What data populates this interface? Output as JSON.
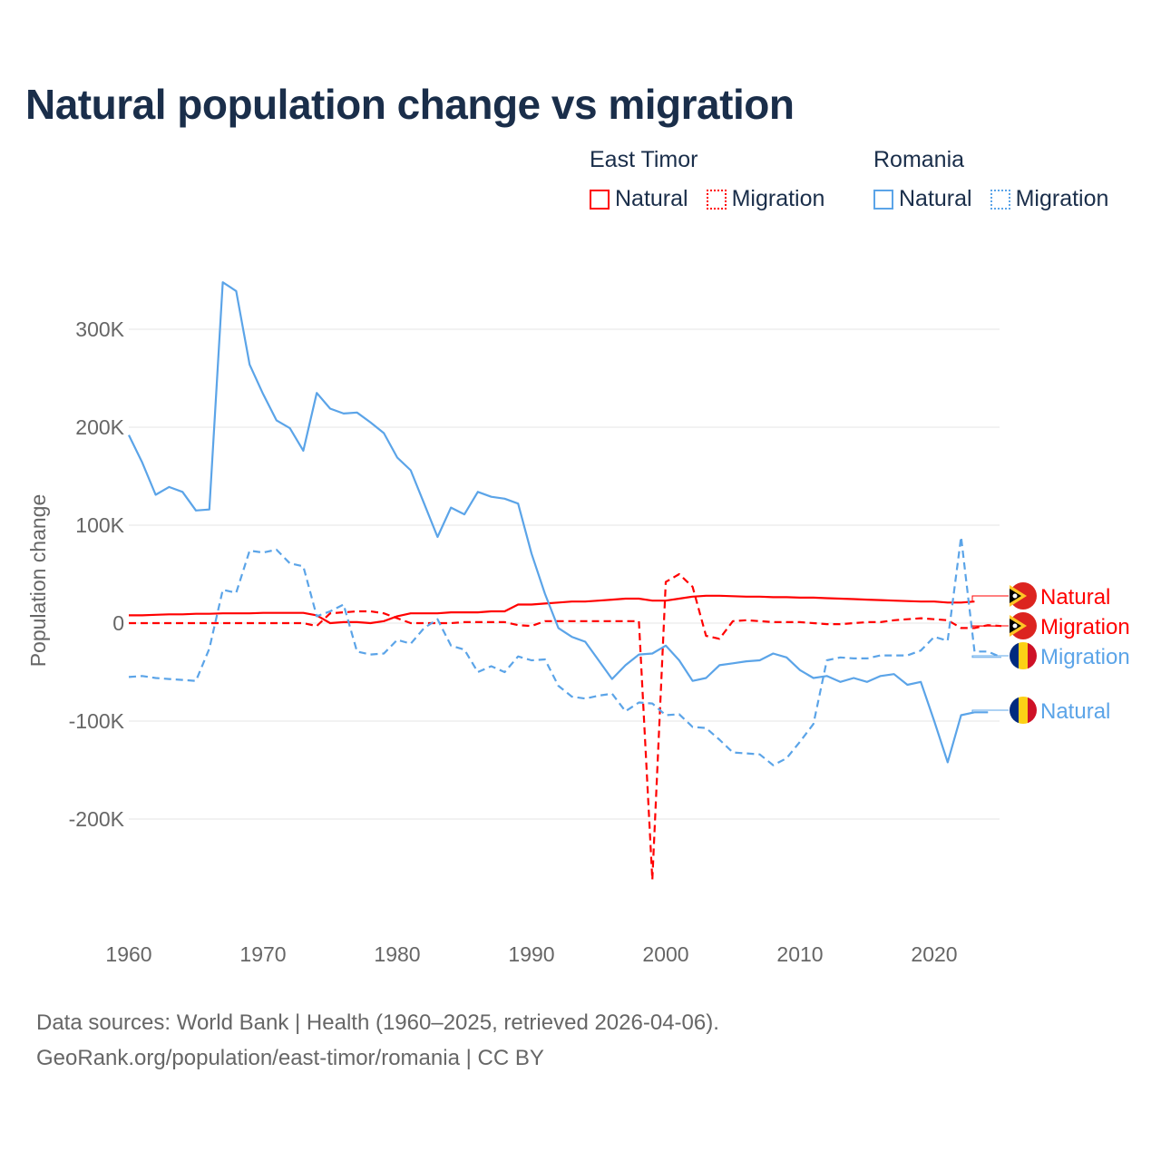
{
  "title": "Natural population change vs migration",
  "legend": {
    "groups": [
      {
        "name": "East Timor",
        "color": "#ff0000",
        "items": [
          "Natural",
          "Migration"
        ]
      },
      {
        "name": "Romania",
        "color": "#5ba4e8",
        "items": [
          "Natural",
          "Migration"
        ]
      }
    ]
  },
  "source": {
    "line1": "Data sources: World Bank | Health (1960–2025, retrieved 2026-04-06).",
    "line2": "GeoRank.org/population/east-timor/romania | CC BY"
  },
  "chart_data": {
    "type": "line",
    "title": "Natural population change vs migration",
    "xlabel": "",
    "ylabel": "Population change",
    "xlim": [
      1960,
      2025
    ],
    "ylim": [
      -280,
      350
    ],
    "units": "thousands",
    "grid": true,
    "x_ticks": [
      1960,
      1970,
      1980,
      1990,
      2000,
      2010,
      2020
    ],
    "y_ticks": [
      {
        "v": 300,
        "label": "300K"
      },
      {
        "v": 200,
        "label": "200K"
      },
      {
        "v": 100,
        "label": "100K"
      },
      {
        "v": 0,
        "label": "0"
      },
      {
        "v": -100,
        "label": "-100K"
      },
      {
        "v": -200,
        "label": "-200K"
      }
    ],
    "legend_position": "top-right",
    "series": [
      {
        "name": "East Timor Natural",
        "label": "Natural",
        "color": "#ff0000",
        "dash": false,
        "start": 1960,
        "values": [
          8,
          8,
          8.5,
          9,
          9,
          9.5,
          9.5,
          10,
          10,
          10,
          10.5,
          10.5,
          10.5,
          10.5,
          8,
          0,
          1,
          1,
          0,
          2,
          7,
          10,
          10,
          10,
          11,
          11,
          11,
          12,
          12,
          19,
          19,
          20,
          21,
          22,
          22,
          23,
          24,
          25,
          25,
          23,
          23,
          25,
          27,
          28,
          28,
          27.5,
          27,
          27,
          26.5,
          26.5,
          26,
          26,
          25.5,
          25,
          24.5,
          24,
          23.5,
          23,
          22.5,
          22,
          22,
          21,
          21,
          22
        ]
      },
      {
        "name": "East Timor Migration",
        "label": "Migration",
        "color": "#ff0000",
        "dash": true,
        "start": 1960,
        "values": [
          0,
          0,
          0,
          0,
          0,
          0,
          0,
          0,
          0,
          0,
          0,
          0,
          0,
          0,
          -3,
          10,
          11,
          12,
          12,
          10,
          5,
          0,
          0,
          0,
          0,
          1,
          1,
          1,
          1,
          -2,
          -3,
          2,
          2,
          2,
          2,
          2,
          2,
          2,
          2,
          -262,
          42,
          50,
          37,
          -13,
          -16,
          2,
          3,
          2,
          1,
          1,
          1,
          0,
          -1,
          -1,
          0,
          1,
          1,
          3,
          4,
          5,
          4,
          3,
          -5,
          -5,
          -2,
          -3
        ]
      },
      {
        "name": "Romania Natural",
        "label": "Natural",
        "color": "#5ba4e8",
        "dash": false,
        "start": 1960,
        "values": [
          192,
          164,
          131,
          139,
          134,
          115,
          116,
          348,
          339,
          264,
          234,
          207,
          199,
          176,
          235,
          219,
          214,
          215,
          205,
          194,
          169,
          156,
          122,
          88,
          118,
          111,
          134,
          129,
          127,
          122,
          71,
          30,
          -5,
          -14,
          -19,
          -38,
          -57,
          -43,
          -32,
          -31,
          -23,
          -38,
          -59,
          -56,
          -43,
          -41,
          -39,
          -38,
          -31,
          -35,
          -48,
          -56,
          -54,
          -60,
          -56,
          -60,
          -54,
          -52,
          -63,
          -60,
          -100,
          -142,
          -94,
          -91,
          -91
        ]
      },
      {
        "name": "Romania Migration",
        "label": "Migration",
        "color": "#5ba4e8",
        "dash": true,
        "start": 1960,
        "values": [
          -55,
          -54,
          -56,
          -57,
          -58,
          -59,
          -26,
          34,
          31,
          74,
          72,
          75,
          61,
          58,
          7,
          12,
          19,
          -29,
          -32,
          -31,
          -17,
          -21,
          -5,
          4,
          -23,
          -27,
          -50,
          -44,
          -50,
          -34,
          -38,
          -37,
          -64,
          -75,
          -77,
          -74,
          -72,
          -90,
          -81,
          -82,
          -94,
          -93,
          -106,
          -107,
          -119,
          -132,
          -133,
          -134,
          -145,
          -138,
          -121,
          -103,
          -38,
          -35,
          -36,
          -36,
          -33,
          -33,
          -33,
          -28,
          -14,
          -18,
          88,
          -29,
          -29,
          -35
        ]
      }
    ]
  }
}
